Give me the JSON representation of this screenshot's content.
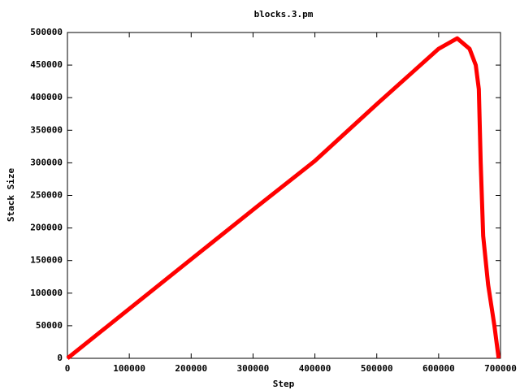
{
  "chart_data": {
    "type": "line",
    "title": "blocks.3.pm",
    "x_label": "Step",
    "y_label": "Stack Size",
    "x": [
      0,
      100000,
      200000,
      300000,
      400000,
      500000,
      600000,
      630000,
      650000,
      660000,
      665000,
      668000,
      672000,
      680000,
      690000,
      697000
    ],
    "series": [
      {
        "name": "Stack Size",
        "color": "#ff0000",
        "values": [
          0,
          76000,
          152000,
          228000,
          303000,
          390000,
          475000,
          491000,
          475000,
          450000,
          413000,
          300000,
          188000,
          113000,
          51000,
          0
        ]
      }
    ],
    "xlim": [
      0,
      700000
    ],
    "xticks": [
      0,
      100000,
      200000,
      300000,
      400000,
      500000,
      600000,
      700000
    ],
    "ylim": [
      0,
      500000
    ],
    "yticks": [
      0,
      50000,
      100000,
      150000,
      200000,
      250000,
      300000,
      350000,
      400000,
      450000,
      500000
    ]
  }
}
